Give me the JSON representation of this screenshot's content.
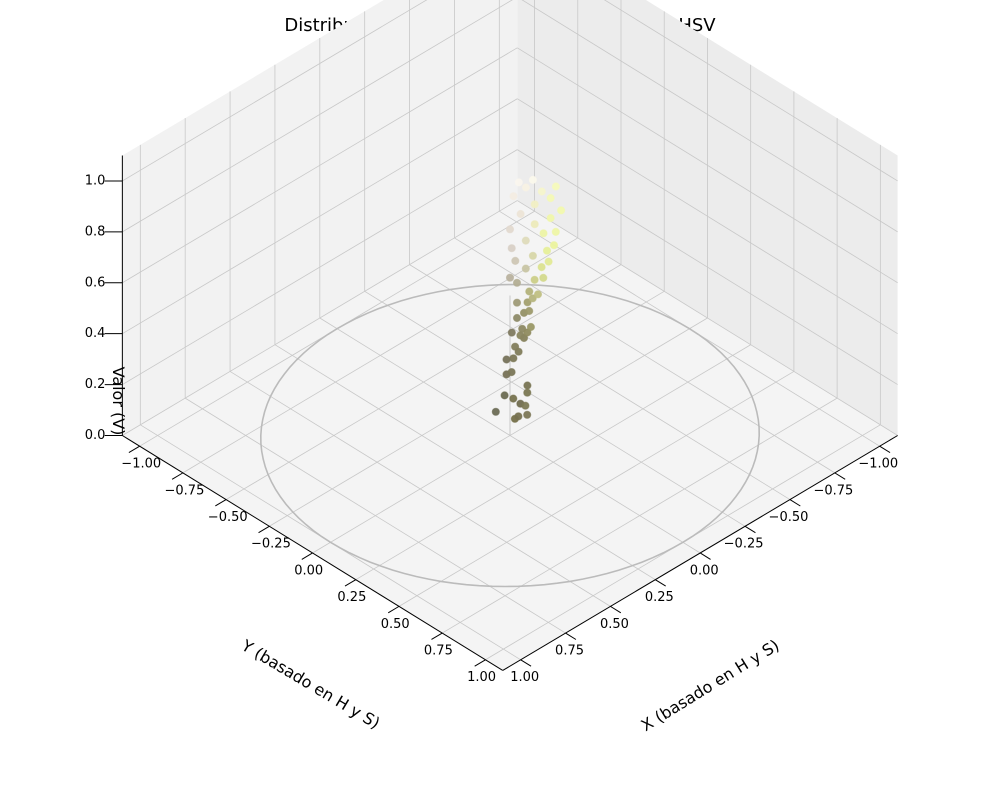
{
  "chart_data": {
    "type": "scatter",
    "title": "Distribución de Píxeles en Espacio de Color HSV",
    "xlabel": "X (basado en H y S)",
    "ylabel": "Y (basado en H y S)",
    "zlabel": "Valor (V)",
    "xlim": [
      -1.1,
      1.1
    ],
    "ylim": [
      -1.1,
      1.1
    ],
    "zlim": [
      0.0,
      1.1
    ],
    "x_ticks": [
      "−1.00",
      "−0.75",
      "−0.50",
      "−0.25",
      "0.00",
      "0.25",
      "0.50",
      "0.75",
      "1.00"
    ],
    "y_ticks": [
      "−1.00",
      "−0.75",
      "−0.50",
      "−0.25",
      "0.00",
      "0.25",
      "0.50",
      "0.75",
      "1.00"
    ],
    "z_ticks": [
      "0.0",
      "0.2",
      "0.4",
      "0.6",
      "0.8",
      "1.0"
    ],
    "grid": true,
    "reference_circle": {
      "radius": 1.0,
      "z": 0.0,
      "color": "#bbbbbb"
    },
    "point_colors": [
      "#6b6a4e",
      "#8a8a5a",
      "#a5a37a",
      "#c9c6a8",
      "#e6efa0",
      "#eef7a6",
      "#f8f4e8"
    ],
    "points": [
      {
        "x": -0.02,
        "y": 0.06,
        "z": 0.11,
        "color": "#6b6b55"
      },
      {
        "x": 0.08,
        "y": 0.05,
        "z": 0.12,
        "color": "#757049"
      },
      {
        "x": 0.09,
        "y": 0.04,
        "z": 0.13,
        "color": "#767150"
      },
      {
        "x": 0.12,
        "y": 0.02,
        "z": 0.14,
        "color": "#7c7756"
      },
      {
        "x": 0.06,
        "y": 0.0,
        "z": 0.15,
        "color": "#716d4f"
      },
      {
        "x": 0.04,
        "y": 0.02,
        "z": 0.17,
        "color": "#76724e"
      },
      {
        "x": 0.0,
        "y": 0.03,
        "z": 0.17,
        "color": "#6c6c52"
      },
      {
        "x": 0.12,
        "y": 0.03,
        "z": 0.18,
        "color": "#7d7a55"
      },
      {
        "x": 0.1,
        "y": 0.0,
        "z": 0.21,
        "color": "#7b7853"
      },
      {
        "x": 0.09,
        "y": -0.01,
        "z": 0.23,
        "color": "#787453"
      },
      {
        "x": -0.01,
        "y": 0.01,
        "z": 0.24,
        "color": "#767156"
      },
      {
        "x": 0.03,
        "y": 0.02,
        "z": 0.27,
        "color": "#7a7657"
      },
      {
        "x": -0.02,
        "y": 0.0,
        "z": 0.29,
        "color": "#76725a"
      },
      {
        "x": 0.03,
        "y": 0.01,
        "z": 0.32,
        "color": "#7c7857"
      },
      {
        "x": 0.05,
        "y": 0.0,
        "z": 0.35,
        "color": "#807c5a"
      },
      {
        "x": 0.04,
        "y": 0.01,
        "z": 0.37,
        "color": "#827d5c"
      },
      {
        "x": 0.06,
        "y": -0.02,
        "z": 0.4,
        "color": "#86825c"
      },
      {
        "x": 0.0,
        "y": -0.01,
        "z": 0.4,
        "color": "#7f7a60"
      },
      {
        "x": 0.05,
        "y": -0.01,
        "z": 0.41,
        "color": "#8a8660"
      },
      {
        "x": 0.06,
        "y": -0.01,
        "z": 0.44,
        "color": "#8c8862"
      },
      {
        "x": 0.08,
        "y": -0.02,
        "z": 0.43,
        "color": "#8f8b5f"
      },
      {
        "x": 0.1,
        "y": -0.02,
        "z": 0.46,
        "color": "#9a9866"
      },
      {
        "x": 0.03,
        "y": -0.01,
        "z": 0.47,
        "color": "#8d8a68"
      },
      {
        "x": 0.05,
        "y": -0.03,
        "z": 0.49,
        "color": "#959166"
      },
      {
        "x": 0.08,
        "y": -0.03,
        "z": 0.51,
        "color": "#9d9a6c"
      },
      {
        "x": 0.07,
        "y": -0.03,
        "z": 0.54,
        "color": "#a3a06f"
      },
      {
        "x": 0.03,
        "y": -0.01,
        "z": 0.53,
        "color": "#9e9a77"
      },
      {
        "x": 0.06,
        "y": -0.05,
        "z": 0.57,
        "color": "#b3b27a"
      },
      {
        "x": 0.09,
        "y": -0.04,
        "z": 0.56,
        "color": "#b5b47d"
      },
      {
        "x": 0.11,
        "y": -0.05,
        "z": 0.58,
        "color": "#c0bf82"
      },
      {
        "x": 0.02,
        "y": -0.02,
        "z": 0.6,
        "color": "#b3ae93"
      },
      {
        "x": 0.0,
        "y": 0.0,
        "z": 0.62,
        "color": "#b9b29f"
      },
      {
        "x": 0.08,
        "y": -0.06,
        "z": 0.62,
        "color": "#cbce88"
      },
      {
        "x": 0.12,
        "y": -0.07,
        "z": 0.64,
        "color": "#d3d98c"
      },
      {
        "x": 0.05,
        "y": -0.04,
        "z": 0.66,
        "color": "#c8c5a4"
      },
      {
        "x": 0.1,
        "y": -0.08,
        "z": 0.67,
        "color": "#dbe28f"
      },
      {
        "x": 0.02,
        "y": -0.01,
        "z": 0.69,
        "color": "#cdc6b4"
      },
      {
        "x": 0.13,
        "y": -0.09,
        "z": 0.7,
        "color": "#e2ea96"
      },
      {
        "x": 0.07,
        "y": -0.06,
        "z": 0.71,
        "color": "#d7d6a8"
      },
      {
        "x": 0.11,
        "y": -0.1,
        "z": 0.73,
        "color": "#e6ef99"
      },
      {
        "x": 0.01,
        "y": 0.0,
        "z": 0.74,
        "color": "#d8d0c6"
      },
      {
        "x": 0.14,
        "y": -0.11,
        "z": 0.76,
        "color": "#ebf39e"
      },
      {
        "x": 0.05,
        "y": -0.04,
        "z": 0.77,
        "color": "#dedbbb"
      },
      {
        "x": 0.09,
        "y": -0.1,
        "z": 0.79,
        "color": "#ecf3a4"
      },
      {
        "x": 0.13,
        "y": -0.13,
        "z": 0.8,
        "color": "#eef6a5"
      },
      {
        "x": 0.0,
        "y": 0.0,
        "z": 0.81,
        "color": "#e2d9cf"
      },
      {
        "x": 0.07,
        "y": -0.07,
        "z": 0.83,
        "color": "#eceab9"
      },
      {
        "x": 0.11,
        "y": -0.12,
        "z": 0.85,
        "color": "#f0f7aa"
      },
      {
        "x": 0.03,
        "y": -0.03,
        "z": 0.87,
        "color": "#ece4d6"
      },
      {
        "x": 0.14,
        "y": -0.15,
        "z": 0.88,
        "color": "#f2f9ae"
      },
      {
        "x": 0.06,
        "y": -0.08,
        "z": 0.9,
        "color": "#f1efc4"
      },
      {
        "x": 0.1,
        "y": -0.13,
        "z": 0.92,
        "color": "#f4f9b5"
      },
      {
        "x": 0.01,
        "y": -0.01,
        "z": 0.94,
        "color": "#f3ece2"
      },
      {
        "x": 0.08,
        "y": -0.1,
        "z": 0.95,
        "color": "#f6f5cc"
      },
      {
        "x": 0.04,
        "y": -0.05,
        "z": 0.97,
        "color": "#f8f2e4"
      },
      {
        "x": 0.12,
        "y": -0.14,
        "z": 0.97,
        "color": "#f6fabc"
      },
      {
        "x": 0.02,
        "y": -0.03,
        "z": 0.99,
        "color": "#faf6ee"
      },
      {
        "x": 0.06,
        "y": -0.07,
        "z": 1.0,
        "color": "#fbf9ec"
      }
    ]
  }
}
